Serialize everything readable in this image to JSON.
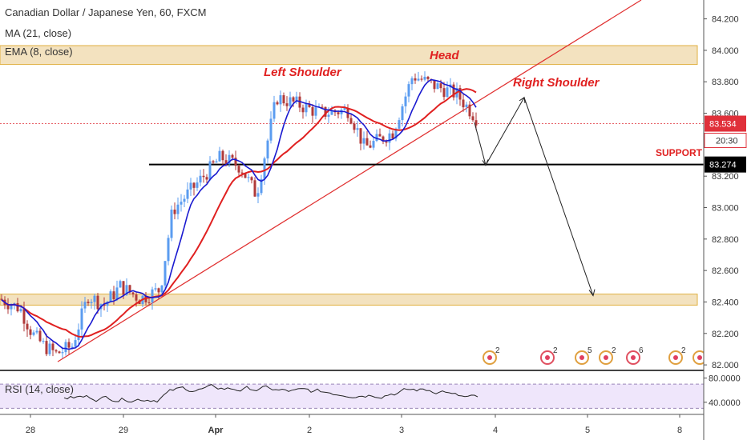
{
  "header": {
    "title": "Canadian Dollar / Japanese Yen, 60, FXCM",
    "ma_label": "MA (21, close)",
    "ema_label": "EMA (8, close)",
    "rsi_label": "RSI (14, close)"
  },
  "colors": {
    "up": "#5b9cf0",
    "down": "#b03a3a",
    "ma": "#e02020",
    "ema": "#1a1ad0",
    "zone_fill": "#f3e2bf",
    "zone_border": "#e0b040",
    "trendline": "#e03030",
    "support_line": "#000000",
    "price_tag": "#e0303a",
    "rsi_line": "#222222",
    "rsi_band": "#efe6fb",
    "annotation": "#e02020"
  },
  "chart_data": {
    "type": "candlestick",
    "title": "Canadian Dollar / Japanese Yen, 60, FXCM",
    "ylim": [
      81.97,
      84.32
    ],
    "y_ticks": [
      "84.200",
      "84.000",
      "83.800",
      "83.600",
      "83.400",
      "83.200",
      "83.000",
      "82.800",
      "82.600",
      "82.400",
      "82.200",
      "82.000"
    ],
    "x_ticks": [
      "28",
      "29",
      "Apr",
      "2",
      "3",
      "4",
      "5",
      "8"
    ],
    "current_price": "83.534",
    "countdown": "20:30",
    "support_price": "83.274",
    "support_label": "SUPPORT",
    "annotations": [
      "Left Shoulder",
      "Head",
      "Right Shoulder"
    ],
    "resistance_zone": [
      83.91,
      84.03
    ],
    "lower_zone": [
      82.38,
      82.45
    ],
    "close_path": [
      [
        "28",
        82.42
      ],
      [
        "28",
        82.36
      ],
      [
        "28",
        82.2
      ],
      [
        "28",
        82.12
      ],
      [
        "28",
        82.07
      ],
      [
        "28",
        82.12
      ],
      [
        "29",
        82.44
      ],
      [
        "29",
        82.38
      ],
      [
        "29",
        82.5
      ],
      [
        "29",
        82.42
      ],
      [
        "29",
        82.48
      ],
      [
        "Apr",
        82.98
      ],
      [
        "Apr",
        83.12
      ],
      [
        "Apr",
        83.32
      ],
      [
        "Apr",
        83.26
      ],
      [
        "Apr",
        83.08
      ],
      [
        "2",
        83.7
      ],
      [
        "2",
        83.66
      ],
      [
        "2",
        83.6
      ],
      [
        "2",
        83.62
      ],
      [
        "2",
        83.38
      ],
      [
        "2",
        83.48
      ],
      [
        "3",
        83.84
      ],
      [
        "3",
        83.78
      ],
      [
        "3",
        83.72
      ],
      [
        "3",
        83.56
      ]
    ],
    "rsi": {
      "label": "RSI (14, close)",
      "ylim": [
        20,
        90
      ],
      "y_ticks": [
        "80.0000",
        "40.0000"
      ],
      "bands": [
        70,
        30
      ]
    }
  }
}
